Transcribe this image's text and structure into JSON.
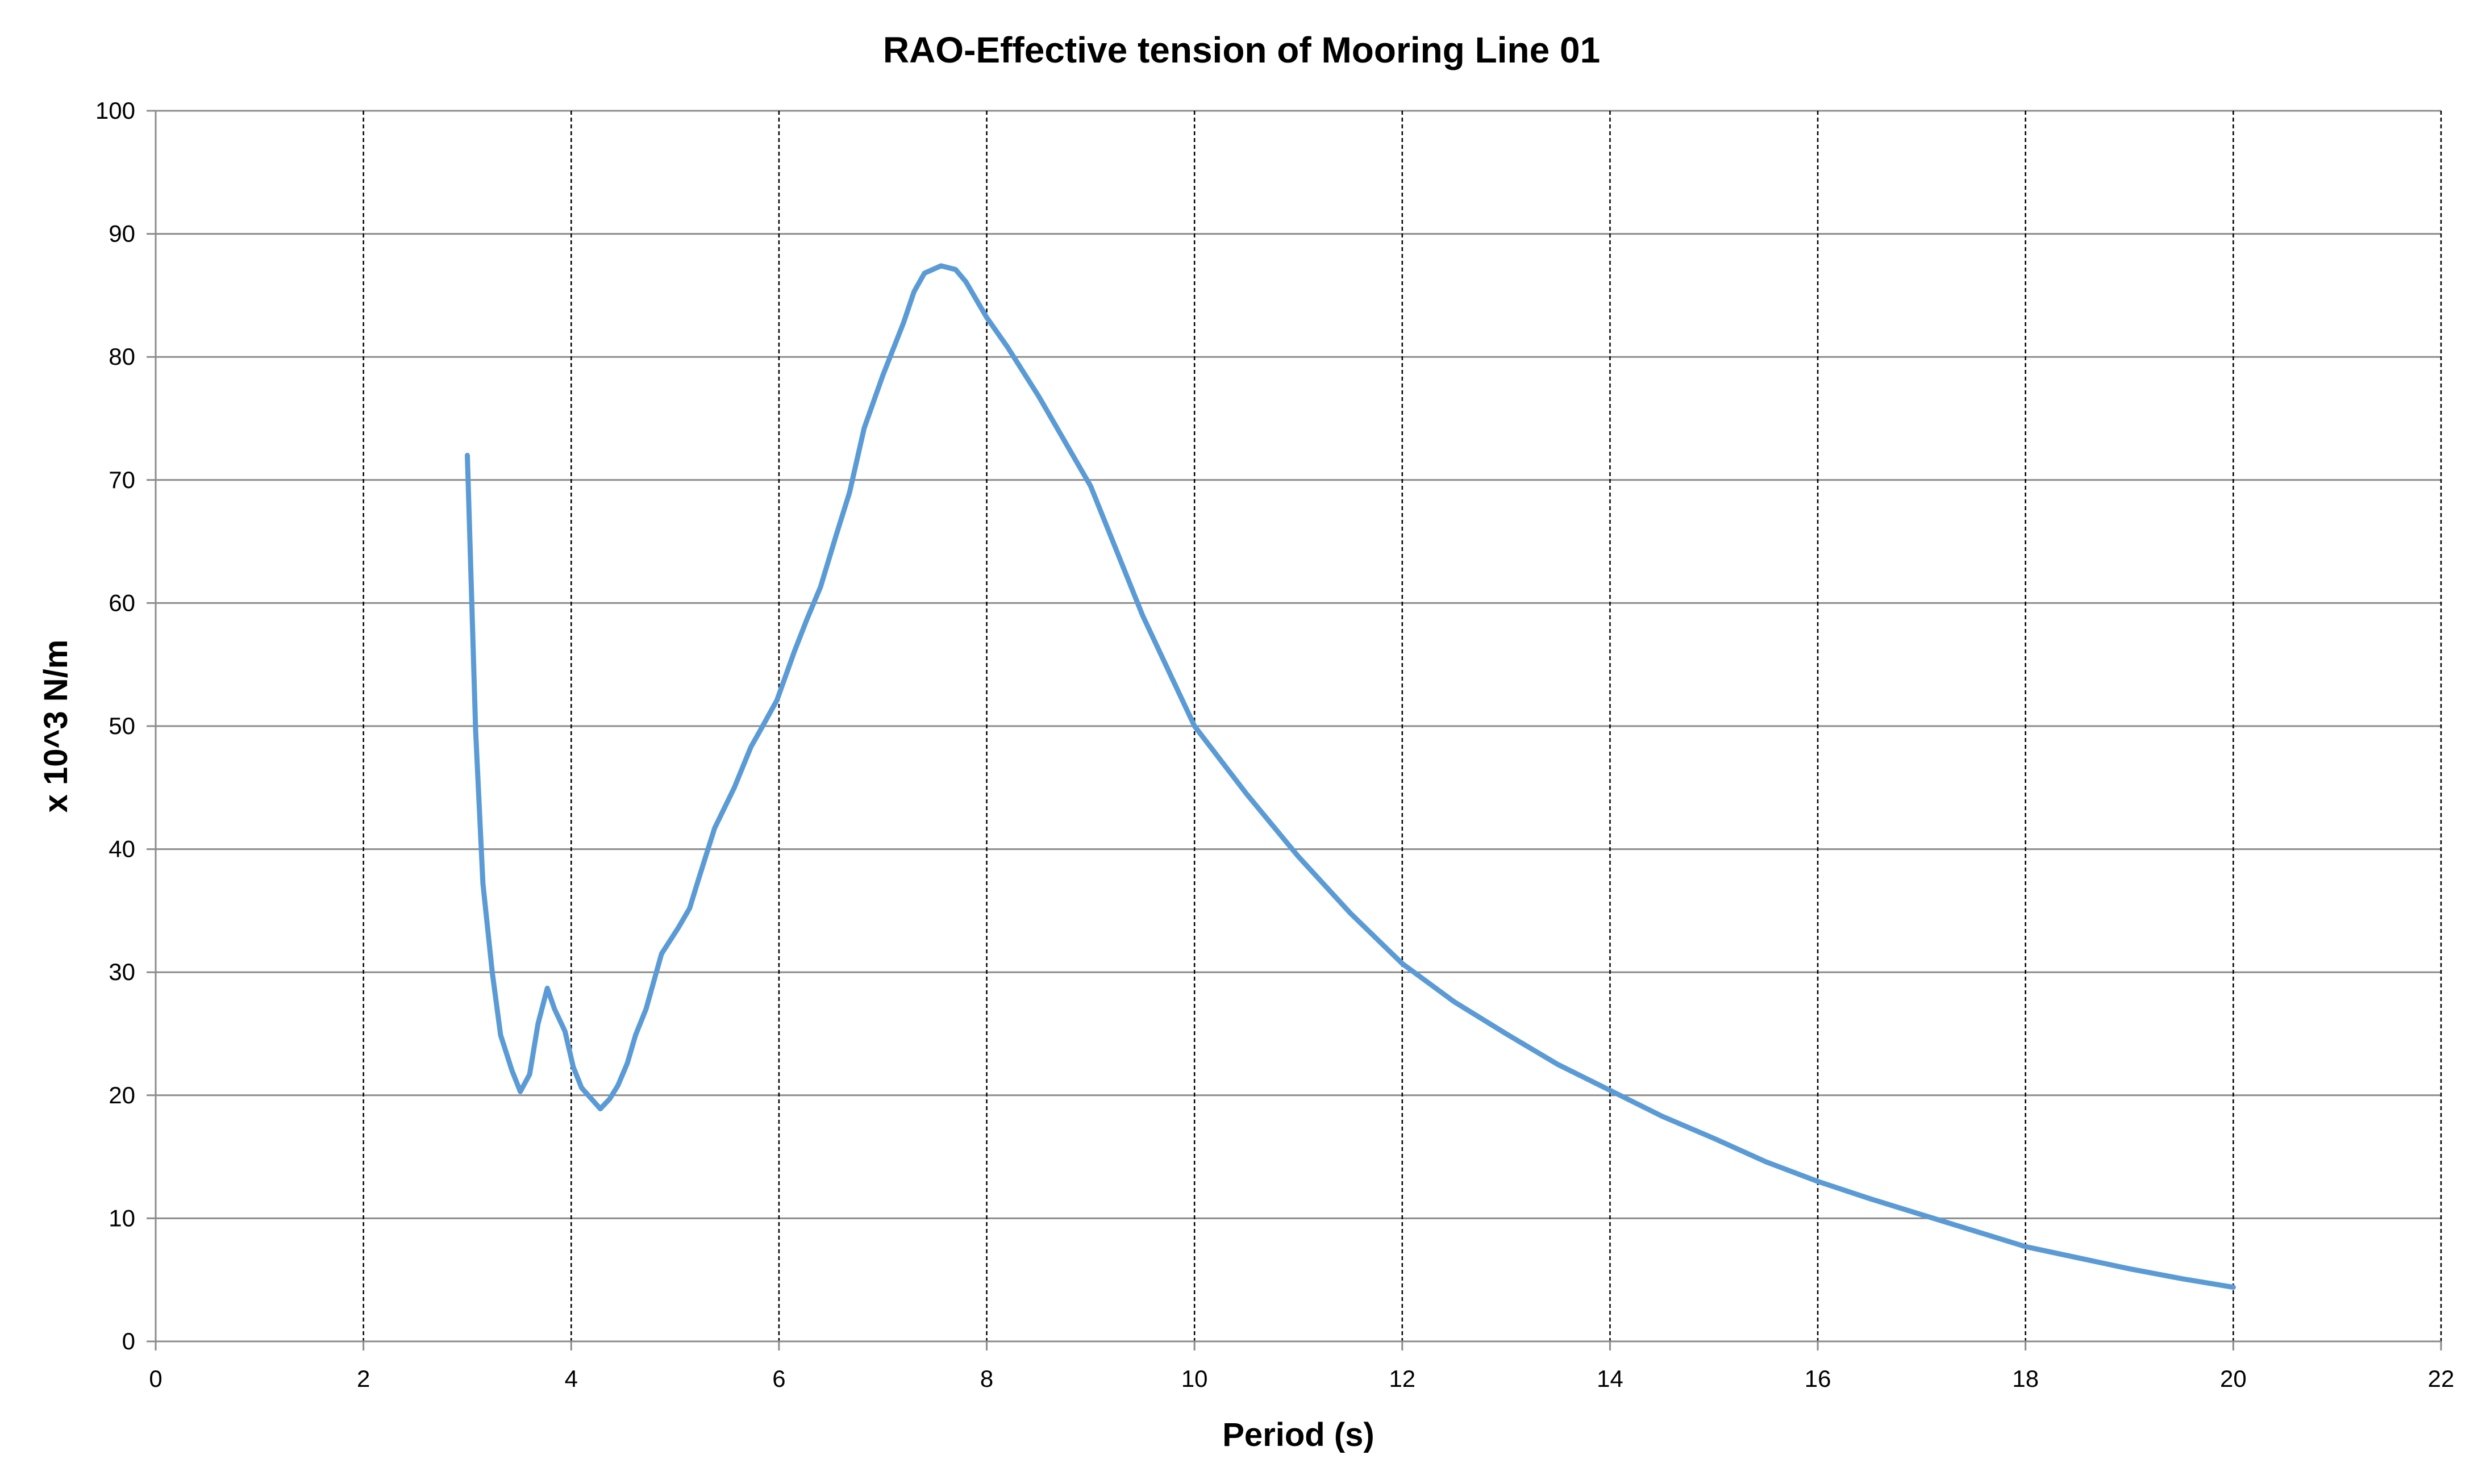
{
  "chart_data": {
    "type": "line",
    "title": "RAO-Effective tension of Mooring Line 01",
    "xlabel": "Period (s)",
    "ylabel": "x 10^3  N/m",
    "xlim": [
      0,
      22
    ],
    "ylim": [
      0,
      100
    ],
    "xticks": [
      0,
      2,
      4,
      6,
      8,
      10,
      12,
      14,
      16,
      18,
      20,
      22
    ],
    "yticks": [
      0,
      10,
      20,
      30,
      40,
      50,
      60,
      70,
      80,
      90,
      100
    ],
    "grid": {
      "x": "dashed",
      "y": "solid"
    },
    "legend": "none",
    "series": [
      {
        "name": "Effective tension",
        "color": "#5B9BD5",
        "x": [
          3.0,
          3.08,
          3.15,
          3.24,
          3.32,
          3.43,
          3.51,
          3.6,
          3.68,
          3.77,
          3.84,
          3.94,
          4.02,
          4.1,
          4.28,
          4.37,
          4.45,
          4.54,
          4.62,
          4.72,
          4.87,
          5.03,
          5.14,
          5.22,
          5.38,
          5.57,
          5.73,
          5.83,
          5.98,
          6.15,
          6.27,
          6.4,
          6.55,
          6.68,
          6.82,
          7.0,
          7.2,
          7.3,
          7.4,
          7.56,
          7.7,
          7.8,
          8.0,
          8.2,
          8.5,
          9.0,
          9.5,
          10.0,
          10.5,
          11.0,
          11.5,
          12.0,
          12.5,
          13.0,
          13.5,
          14.0,
          14.5,
          15.0,
          15.5,
          16.0,
          16.5,
          17.0,
          17.5,
          18.0,
          18.5,
          19.0,
          19.5,
          20.0
        ],
        "y": [
          72.0,
          49.6,
          37.2,
          30.0,
          24.9,
          22.0,
          20.3,
          21.7,
          25.8,
          28.7,
          27.0,
          25.2,
          22.3,
          20.6,
          18.9,
          19.7,
          20.8,
          22.6,
          24.9,
          27.0,
          31.5,
          33.6,
          35.2,
          37.4,
          41.7,
          45.0,
          48.3,
          49.8,
          52.1,
          56.1,
          58.7,
          61.3,
          65.5,
          69.0,
          74.2,
          78.5,
          82.8,
          85.3,
          86.8,
          87.4,
          87.1,
          86.1,
          83.2,
          80.8,
          76.8,
          69.5,
          59.0,
          50.0,
          44.5,
          39.4,
          34.8,
          30.7,
          27.6,
          25.0,
          22.5,
          20.4,
          18.3,
          16.5,
          14.6,
          13.0,
          11.6,
          10.3,
          9.0,
          7.7,
          6.8,
          5.9,
          5.1,
          4.4
        ]
      }
    ]
  }
}
